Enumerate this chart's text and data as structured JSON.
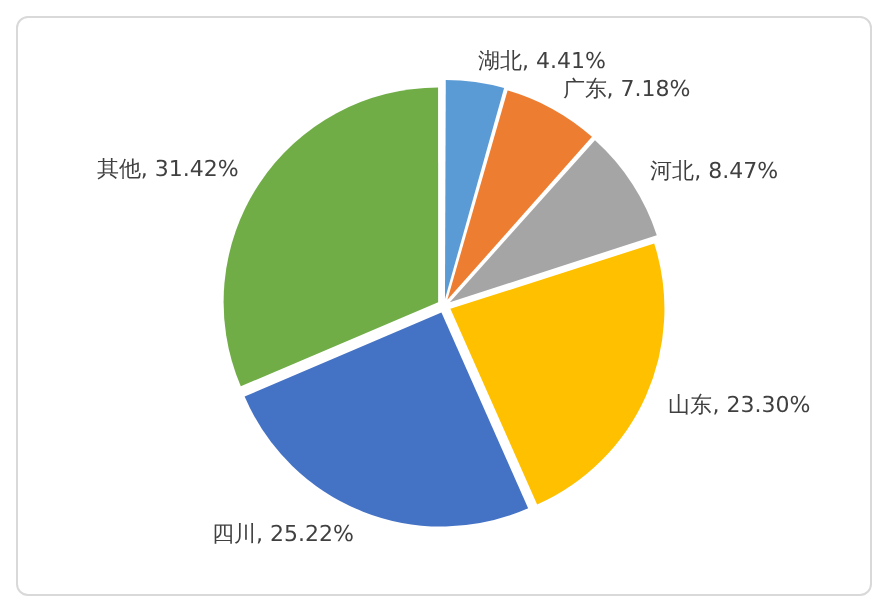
{
  "chart_data": {
    "type": "pie",
    "categories": [
      "湖北",
      "广东",
      "河北",
      "山东",
      "四川",
      "其他"
    ],
    "values": [
      4.41,
      7.18,
      8.47,
      23.3,
      25.22,
      31.42
    ],
    "value_labels": [
      ", 4.41%",
      ", 7.18%",
      ", 8.47%",
      ", 23.30%",
      ", 25.22%",
      ", 31.42%"
    ],
    "colors": [
      "#5b9bd5",
      "#ed7d31",
      "#a5a5a5",
      "#ffc000",
      "#4472c4",
      "#70ad47"
    ],
    "legend": false
  }
}
